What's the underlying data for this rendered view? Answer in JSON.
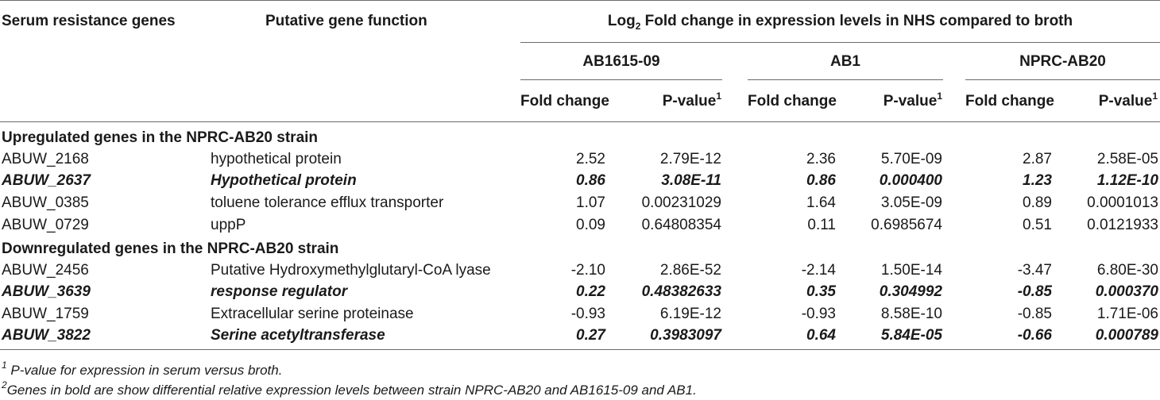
{
  "headers": {
    "col_gene": "Serum resistance genes",
    "col_function": "Putative gene function",
    "col_log2_prefix": "Log",
    "col_log2_sub": "2",
    "col_log2_suffix": " Fold change in expression levels in NHS compared to broth",
    "strains": [
      "AB1615-09",
      "AB1",
      "NPRC-AB20"
    ],
    "fold_change": "Fold change",
    "pvalue": "P-value",
    "pvalue_sup": "1"
  },
  "sections": [
    {
      "title": "Upregulated genes in the NPRC-AB20 strain",
      "rows": [
        {
          "gene": "ABUW_2168",
          "function": "hypothetical protein",
          "values": [
            "2.52",
            "2.79E-12",
            "2.36",
            "5.70E-09",
            "2.87",
            "2.58E-05"
          ],
          "bold": false
        },
        {
          "gene": "ABUW_2637",
          "function": "Hypothetical protein",
          "values": [
            "0.86",
            "3.08E-11",
            "0.86",
            "0.000400",
            "1.23",
            "1.12E-10"
          ],
          "bold": true
        },
        {
          "gene": "ABUW_0385",
          "function": "toluene tolerance efflux transporter",
          "values": [
            "1.07",
            "0.00231029",
            "1.64",
            "3.05E-09",
            "0.89",
            "0.0001013"
          ],
          "bold": false
        },
        {
          "gene": "ABUW_0729",
          "function": "uppP",
          "values": [
            "0.09",
            "0.64808354",
            "0.11",
            "0.6985674",
            "0.51",
            "0.0121933"
          ],
          "bold": false
        }
      ]
    },
    {
      "title": "Downregulated genes in the NPRC-AB20 strain",
      "rows": [
        {
          "gene": "ABUW_2456",
          "function": "Putative Hydroxymethylglutaryl-CoA lyase",
          "values": [
            "-2.10",
            "2.86E-52",
            "-2.14",
            "1.50E-14",
            "-3.47",
            "6.80E-30"
          ],
          "bold": false
        },
        {
          "gene": "ABUW_3639",
          "function": "response regulator",
          "values": [
            "0.22",
            "0.48382633",
            "0.35",
            "0.304992",
            "-0.85",
            "0.000370"
          ],
          "bold": true
        },
        {
          "gene": "ABUW_1759",
          "function": "Extracellular serine proteinase",
          "values": [
            "-0.93",
            "6.19E-12",
            "-0.93",
            "8.58E-10",
            "-0.85",
            "1.71E-06"
          ],
          "bold": false
        },
        {
          "gene": "ABUW_3822",
          "function": "Serine acetyltransferase",
          "values": [
            "0.27",
            "0.3983097",
            "0.64",
            "5.84E-05",
            "-0.66",
            "0.000789"
          ],
          "bold": true
        }
      ]
    }
  ],
  "footnotes": [
    {
      "sup": "1",
      "text": " P-value for expression in serum versus broth."
    },
    {
      "sup": "2",
      "text": "Genes in bold are show differential relative expression levels between strain NPRC-AB20 and AB1615-09 and AB1."
    }
  ]
}
